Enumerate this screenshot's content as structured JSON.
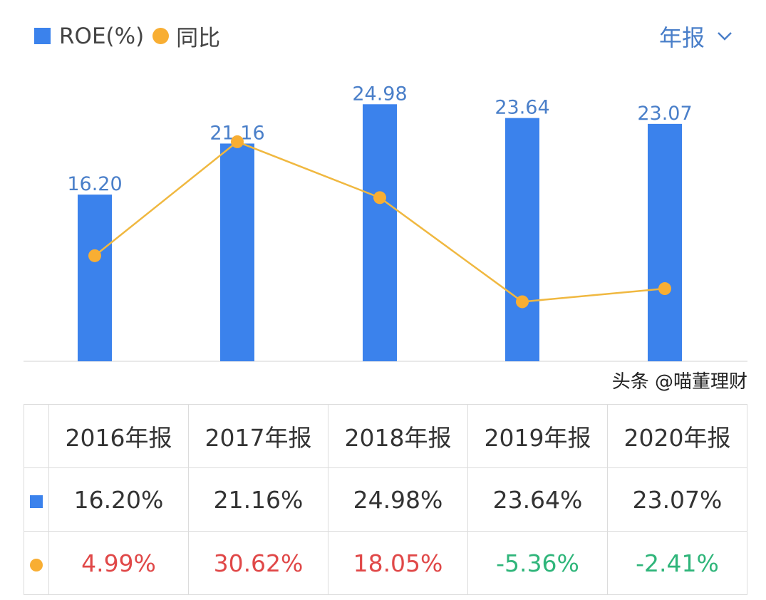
{
  "legend": {
    "roe_label": "ROE(%)",
    "yoy_label": "同比"
  },
  "period_selector": {
    "label": "年报",
    "icon": "chevron-down-icon"
  },
  "colors": {
    "bar": "#3b82ec",
    "line": "#f0b840",
    "dot": "#f8ae33",
    "positive": "#e04848",
    "negative": "#2fb57a",
    "value_label": "#4a7fc9"
  },
  "chart_data": {
    "type": "bar+line",
    "categories": [
      "2016年报",
      "2017年报",
      "2018年报",
      "2019年报",
      "2020年报"
    ],
    "series": [
      {
        "name": "ROE(%)",
        "type": "bar",
        "values": [
          16.2,
          21.16,
          24.98,
          23.64,
          23.07
        ],
        "labels": [
          "16.20",
          "21.16",
          "24.98",
          "23.64",
          "23.07"
        ]
      },
      {
        "name": "同比",
        "type": "line",
        "values": [
          4.99,
          30.62,
          18.05,
          -5.36,
          -2.41
        ]
      }
    ]
  },
  "table": {
    "headers": [
      "2016年报",
      "2017年报",
      "2018年报",
      "2019年报",
      "2020年报"
    ],
    "roe_row": [
      "16.20%",
      "21.16%",
      "24.98%",
      "23.64%",
      "23.07%"
    ],
    "yoy_row": [
      "4.99%",
      "30.62%",
      "18.05%",
      "-5.36%",
      "-2.41%"
    ]
  },
  "watermark": "头条 @喵董理财"
}
